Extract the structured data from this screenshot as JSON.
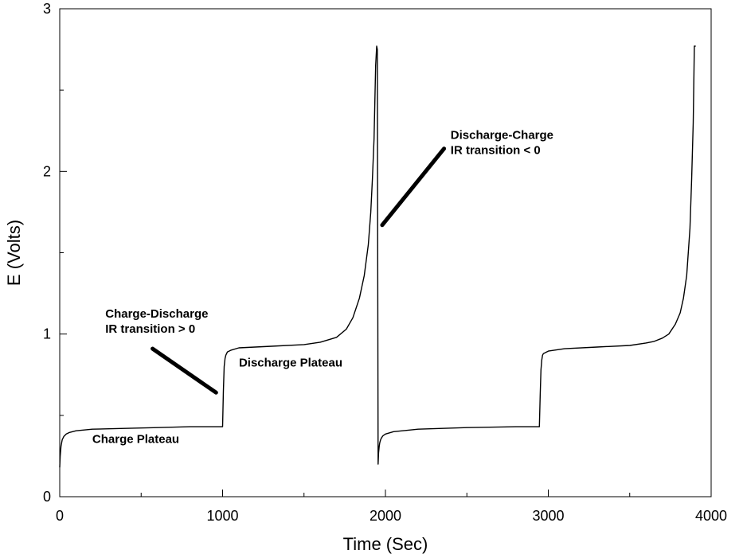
{
  "chart_data": {
    "type": "line",
    "title": "",
    "xlabel": "Time (Sec)",
    "ylabel": "E (Volts)",
    "xlim": [
      0,
      4000
    ],
    "ylim": [
      0,
      3
    ],
    "x_ticks": [
      0,
      1000,
      2000,
      3000,
      4000
    ],
    "y_ticks": [
      0,
      1,
      2,
      3
    ],
    "x_tick_labels": [
      "0",
      "1000",
      "2000",
      "3000",
      "4000"
    ],
    "y_tick_labels": [
      "0",
      "1",
      "2",
      "3"
    ],
    "grid": false,
    "legend": "none",
    "series": [
      {
        "color": "#000000",
        "x": [
          0,
          3,
          8,
          15,
          25,
          40,
          60,
          100,
          200,
          400,
          600,
          800,
          990,
          1000,
          1005,
          1010,
          1015,
          1020,
          1030,
          1050,
          1100,
          1300,
          1500,
          1600,
          1700,
          1760,
          1800,
          1840,
          1870,
          1895,
          1910,
          1920,
          1930,
          1940,
          1946,
          1950,
          1955,
          1958,
          1962,
          1965,
          1970,
          1975,
          1985,
          2000,
          2050,
          2200,
          2500,
          2800,
          2940,
          2945,
          2950,
          2955,
          2960,
          2965,
          2970,
          3000,
          3100,
          3300,
          3500,
          3600,
          3650,
          3700,
          3740,
          3780,
          3810,
          3830,
          3850,
          3870,
          3880,
          3890,
          3897,
          3905
        ],
        "y": [
          0.18,
          0.25,
          0.31,
          0.35,
          0.37,
          0.385,
          0.395,
          0.405,
          0.415,
          0.42,
          0.425,
          0.43,
          0.43,
          0.43,
          0.65,
          0.8,
          0.85,
          0.87,
          0.89,
          0.9,
          0.915,
          0.925,
          0.935,
          0.95,
          0.98,
          1.03,
          1.1,
          1.22,
          1.36,
          1.55,
          1.75,
          1.95,
          2.2,
          2.65,
          2.77,
          2.75,
          0.2,
          0.27,
          0.31,
          0.33,
          0.35,
          0.36,
          0.375,
          0.385,
          0.4,
          0.415,
          0.425,
          0.43,
          0.43,
          0.43,
          0.62,
          0.78,
          0.84,
          0.87,
          0.88,
          0.895,
          0.91,
          0.92,
          0.93,
          0.945,
          0.955,
          0.975,
          1.0,
          1.06,
          1.13,
          1.22,
          1.36,
          1.65,
          1.95,
          2.3,
          2.77,
          2.77
        ]
      }
    ],
    "annotations": [
      {
        "lines": [
          "Charge-Discharge",
          "IR transition > 0"
        ],
        "x": 280,
        "y": 1.1
      },
      {
        "lines": [
          "Charge Plateau"
        ],
        "x": 200,
        "y": 0.33
      },
      {
        "lines": [
          "Discharge Plateau"
        ],
        "x": 1100,
        "y": 0.8
      },
      {
        "lines": [
          "Discharge-Charge",
          "IR transition < 0"
        ],
        "x": 2400,
        "y": 2.2
      }
    ],
    "arrows": [
      {
        "x1": 570,
        "y1": 0.91,
        "x2": 960,
        "y2": 0.64
      },
      {
        "x1": 1980,
        "y1": 1.67,
        "x2": 2360,
        "y2": 2.14
      }
    ]
  }
}
